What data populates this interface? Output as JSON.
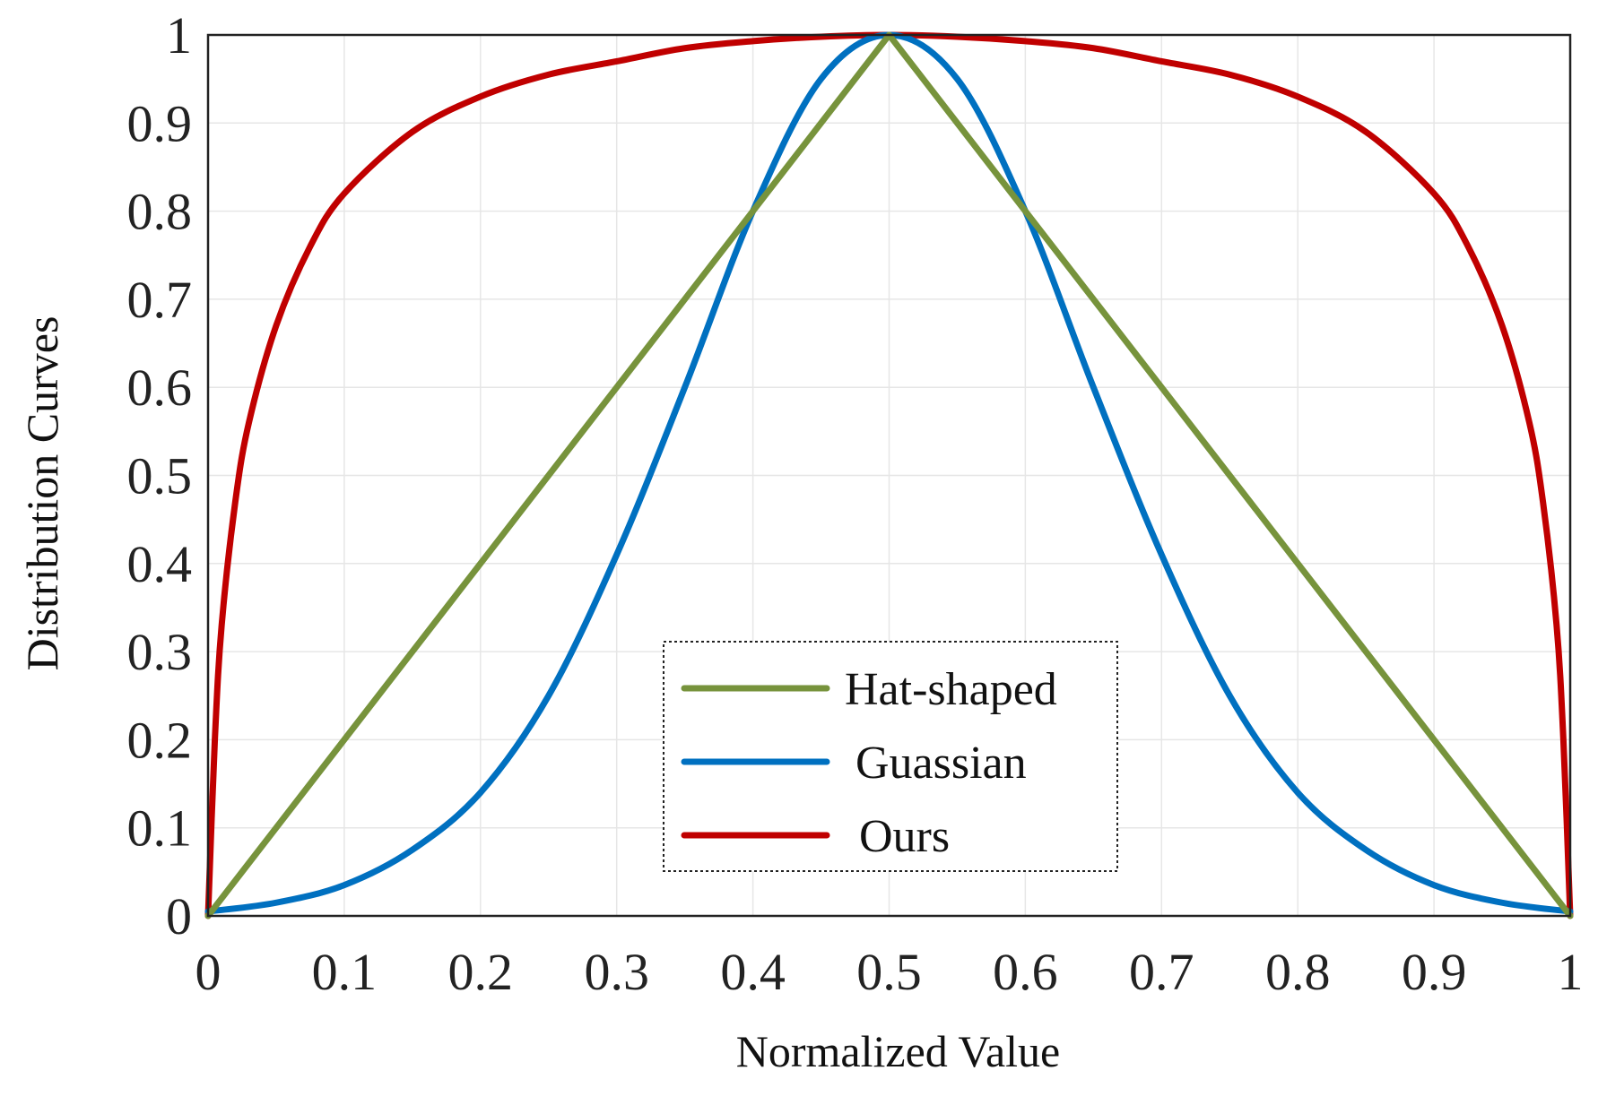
{
  "chart_data": {
    "type": "line",
    "title": "",
    "xlabel": "Normalized Value",
    "ylabel": "Distribution Curves",
    "xlim": [
      0,
      1
    ],
    "ylim": [
      0,
      1
    ],
    "grid": true,
    "legend_position": "bottom-center",
    "xticks": [
      {
        "value": 0,
        "label": "0"
      },
      {
        "value": 0.1,
        "label": "0.1"
      },
      {
        "value": 0.2,
        "label": "0.2"
      },
      {
        "value": 0.3,
        "label": "0.3"
      },
      {
        "value": 0.4,
        "label": "0.4"
      },
      {
        "value": 0.5,
        "label": "0.5"
      },
      {
        "value": 0.6,
        "label": "0.6"
      },
      {
        "value": 0.7,
        "label": "0.7"
      },
      {
        "value": 0.8,
        "label": "0.8"
      },
      {
        "value": 0.9,
        "label": "0.9"
      },
      {
        "value": 1,
        "label": "1"
      }
    ],
    "yticks": [
      {
        "value": 0,
        "label": "0"
      },
      {
        "value": 0.1,
        "label": "0.1"
      },
      {
        "value": 0.2,
        "label": "0.2"
      },
      {
        "value": 0.3,
        "label": "0.3"
      },
      {
        "value": 0.4,
        "label": "0.4"
      },
      {
        "value": 0.5,
        "label": "0.5"
      },
      {
        "value": 0.6,
        "label": "0.6"
      },
      {
        "value": 0.7,
        "label": "0.7"
      },
      {
        "value": 0.8,
        "label": "0.8"
      },
      {
        "value": 0.9,
        "label": "0.9"
      },
      {
        "value": 1,
        "label": "1"
      }
    ],
    "series": [
      {
        "name": "Hat-shaped",
        "color": "#77933c",
        "x": [
          0,
          0.5,
          1
        ],
        "y": [
          0,
          1,
          0
        ]
      },
      {
        "name": "Guassian",
        "color": "#0070c0",
        "x": [
          0,
          0.05,
          0.1,
          0.15,
          0.2,
          0.25,
          0.3,
          0.35,
          0.4,
          0.45,
          0.5,
          0.55,
          0.6,
          0.65,
          0.7,
          0.75,
          0.8,
          0.85,
          0.9,
          0.95,
          1
        ],
        "y": [
          0.005,
          0.015,
          0.035,
          0.075,
          0.14,
          0.25,
          0.41,
          0.6,
          0.8,
          0.95,
          1,
          0.95,
          0.8,
          0.6,
          0.41,
          0.25,
          0.14,
          0.075,
          0.035,
          0.015,
          0.005
        ]
      },
      {
        "name": "Ours",
        "color": "#c00000",
        "x": [
          0,
          0.005,
          0.01,
          0.02,
          0.03,
          0.05,
          0.075,
          0.1,
          0.15,
          0.2,
          0.25,
          0.3,
          0.35,
          0.4,
          0.45,
          0.5,
          0.55,
          0.6,
          0.65,
          0.7,
          0.75,
          0.8,
          0.85,
          0.9,
          0.925,
          0.95,
          0.97,
          0.98,
          0.99,
          0.995,
          1
        ],
        "y": [
          0,
          0.2,
          0.33,
          0.47,
          0.56,
          0.67,
          0.76,
          0.82,
          0.89,
          0.93,
          0.955,
          0.97,
          0.985,
          0.993,
          0.998,
          1,
          0.998,
          0.993,
          0.985,
          0.97,
          0.955,
          0.93,
          0.89,
          0.82,
          0.76,
          0.67,
          0.56,
          0.47,
          0.33,
          0.2,
          0
        ]
      }
    ]
  }
}
